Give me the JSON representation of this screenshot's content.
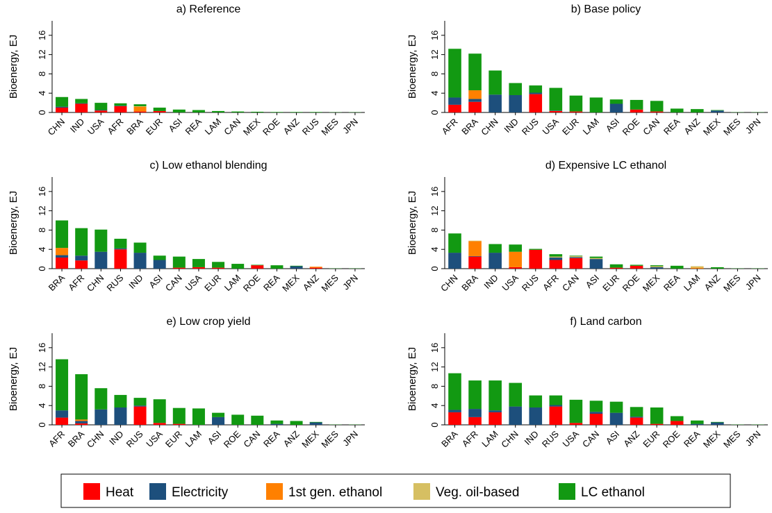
{
  "legend": [
    {
      "name": "Heat",
      "color": "#ff0000"
    },
    {
      "name": "Electricity",
      "color": "#1d4f7c"
    },
    {
      "name": "1st gen. ethanol",
      "color": "#ff8000"
    },
    {
      "name": "Veg. oil-based",
      "color": "#d6bf62"
    },
    {
      "name": "LC ethanol",
      "color": "#129912"
    }
  ],
  "chart_data": [
    {
      "type": "bar",
      "stacked": true,
      "title": "a) Reference",
      "y_label": "Bioenergy, EJ",
      "categories": [
        "CHN",
        "IND",
        "USA",
        "AFR",
        "BRA",
        "EUR",
        "ASI",
        "REA",
        "LAM",
        "CAN",
        "MEX",
        "ROE",
        "ANZ",
        "RUS",
        "MES",
        "JPN"
      ],
      "series": [
        {
          "values": [
            1.0,
            1.8,
            0.4,
            1.3,
            0.2,
            0.3,
            0,
            0,
            0,
            0,
            0,
            0,
            0,
            0,
            0,
            0
          ]
        },
        {
          "values": [
            0.2,
            0.1,
            0.1,
            0.1,
            0,
            0,
            0,
            0,
            0,
            0,
            0,
            0,
            0,
            0,
            0,
            0
          ]
        },
        {
          "values": [
            0,
            0,
            0,
            0,
            1.0,
            0,
            0,
            0,
            0,
            0,
            0,
            0,
            0,
            0,
            0,
            0
          ]
        },
        {
          "values": [
            0,
            0,
            0,
            0,
            0.1,
            0,
            0,
            0,
            0,
            0,
            0,
            0,
            0,
            0,
            0,
            0
          ]
        },
        {
          "values": [
            2.0,
            0.9,
            1.5,
            0.5,
            0.4,
            0.7,
            0.6,
            0.5,
            0.3,
            0.2,
            0.15,
            0.1,
            0.1,
            0.1,
            0.05,
            0.05
          ]
        }
      ],
      "ylim": [
        0,
        19
      ],
      "yticks": [
        0,
        4,
        8,
        12,
        16
      ]
    },
    {
      "type": "bar",
      "stacked": true,
      "title": "b) Base policy",
      "y_label": "Bioenergy, EJ",
      "categories": [
        "AFR",
        "BRA",
        "CHN",
        "IND",
        "RUS",
        "USA",
        "EUR",
        "LAM",
        "ASI",
        "ROE",
        "CAN",
        "REA",
        "ANZ",
        "MEX",
        "MES",
        "JPN"
      ],
      "series": [
        {
          "values": [
            1.6,
            2.2,
            0,
            0,
            3.8,
            0.3,
            0.2,
            0,
            0,
            0.6,
            0.2,
            0,
            0,
            0,
            0,
            0
          ]
        },
        {
          "values": [
            1.5,
            0.6,
            3.7,
            3.6,
            0.3,
            0.1,
            0,
            0,
            1.8,
            0,
            0,
            0,
            0,
            0.4,
            0,
            0
          ]
        },
        {
          "values": [
            0,
            1.8,
            0,
            0,
            0,
            0,
            0,
            0,
            0,
            0,
            0,
            0,
            0,
            0,
            0,
            0
          ]
        },
        {
          "values": [
            0,
            0,
            0,
            0,
            0,
            0,
            0,
            0,
            0,
            0,
            0,
            0,
            0,
            0,
            0,
            0
          ]
        },
        {
          "values": [
            10.1,
            7.6,
            5.0,
            2.5,
            1.5,
            4.7,
            3.3,
            3.1,
            0.9,
            2.0,
            2.2,
            0.8,
            0.7,
            0.1,
            0.05,
            0.05
          ]
        }
      ],
      "ylim": [
        0,
        19
      ],
      "yticks": [
        0,
        4,
        8,
        12,
        16
      ]
    },
    {
      "type": "bar",
      "stacked": true,
      "title": "c) Low ethanol blending",
      "y_label": "Bioenergy, EJ",
      "categories": [
        "BRA",
        "AFR",
        "CHN",
        "RUS",
        "IND",
        "ASI",
        "CAN",
        "USA",
        "EUR",
        "LAM",
        "ROE",
        "REA",
        "MEX",
        "ANZ",
        "MES",
        "JPN"
      ],
      "series": [
        {
          "values": [
            2.3,
            1.7,
            0,
            4.0,
            0,
            0,
            0.2,
            0.3,
            0.2,
            0,
            0.7,
            0,
            0,
            0.2,
            0,
            0
          ]
        },
        {
          "values": [
            0.5,
            1.0,
            3.5,
            0.2,
            3.3,
            1.8,
            0,
            0,
            0,
            0,
            0,
            0,
            0.5,
            0,
            0,
            0
          ]
        },
        {
          "values": [
            1.5,
            0,
            0,
            0,
            0,
            0,
            0,
            0,
            0,
            0,
            0,
            0,
            0,
            0.2,
            0,
            0
          ]
        },
        {
          "values": [
            0,
            0,
            0,
            0,
            0,
            0,
            0,
            0,
            0,
            0,
            0,
            0,
            0,
            0,
            0,
            0
          ]
        },
        {
          "values": [
            5.7,
            5.7,
            4.6,
            2.0,
            2.1,
            0.9,
            2.3,
            1.7,
            1.2,
            1.0,
            0.1,
            0.7,
            0.1,
            0,
            0.05,
            0.05
          ]
        }
      ],
      "ylim": [
        0,
        19
      ],
      "yticks": [
        0,
        4,
        8,
        12,
        16
      ]
    },
    {
      "type": "bar",
      "stacked": true,
      "title": "d) Expensive LC ethanol",
      "y_label": "Bioenergy, EJ",
      "categories": [
        "CHN",
        "BRA",
        "IND",
        "USA",
        "RUS",
        "AFR",
        "CAN",
        "ASI",
        "EUR",
        "ROE",
        "MEX",
        "REA",
        "LAM",
        "ANZ",
        "MES",
        "JPN"
      ],
      "series": [
        {
          "values": [
            0,
            2.5,
            0,
            0.3,
            3.9,
            1.8,
            2.2,
            0,
            0.2,
            0.6,
            0,
            0,
            0,
            0,
            0,
            0
          ]
        },
        {
          "values": [
            3.3,
            0.1,
            3.3,
            0,
            0,
            0.5,
            0.2,
            2.0,
            0,
            0,
            0.3,
            0,
            0,
            0,
            0,
            0
          ]
        },
        {
          "values": [
            0,
            3.1,
            0,
            3.2,
            0,
            0,
            0,
            0,
            0,
            0,
            0,
            0,
            0.2,
            0,
            0,
            0
          ]
        },
        {
          "values": [
            0,
            0.1,
            0,
            0,
            0,
            0.2,
            0.2,
            0.2,
            0,
            0,
            0.2,
            0,
            0.3,
            0,
            0,
            0
          ]
        },
        {
          "values": [
            4.0,
            0,
            1.8,
            1.5,
            0.2,
            0.5,
            0.1,
            0.3,
            0.7,
            0.2,
            0.2,
            0.6,
            0,
            0.3,
            0.05,
            0.05
          ]
        }
      ],
      "ylim": [
        0,
        19
      ],
      "yticks": [
        0,
        4,
        8,
        12,
        16
      ]
    },
    {
      "type": "bar",
      "stacked": true,
      "title": "e) Low crop yield",
      "y_label": "Bioenergy, EJ",
      "categories": [
        "AFR",
        "BRA",
        "CHN",
        "IND",
        "RUS",
        "USA",
        "EUR",
        "LAM",
        "ASI",
        "ROE",
        "CAN",
        "REA",
        "ANZ",
        "MEX",
        "MES",
        "JPN"
      ],
      "series": [
        {
          "values": [
            1.5,
            0.3,
            0,
            0,
            3.8,
            0.4,
            0.2,
            0,
            0,
            0,
            0,
            0,
            0,
            0,
            0,
            0
          ]
        },
        {
          "values": [
            1.5,
            0.5,
            3.2,
            3.6,
            0.2,
            0,
            0,
            0,
            1.6,
            0,
            0,
            0.2,
            0,
            0.5,
            0,
            0
          ]
        },
        {
          "values": [
            0,
            0.3,
            0,
            0,
            0,
            0,
            0,
            0,
            0,
            0,
            0,
            0,
            0,
            0,
            0,
            0
          ]
        },
        {
          "values": [
            0,
            0,
            0,
            0,
            0,
            0,
            0,
            0,
            0,
            0,
            0,
            0,
            0,
            0,
            0,
            0
          ]
        },
        {
          "values": [
            10.6,
            9.4,
            4.4,
            2.6,
            1.6,
            4.9,
            3.3,
            3.4,
            0.9,
            2.1,
            1.9,
            0.7,
            0.8,
            0.1,
            0.05,
            0.05
          ]
        }
      ],
      "ylim": [
        0,
        19
      ],
      "yticks": [
        0,
        4,
        8,
        12,
        16
      ]
    },
    {
      "type": "bar",
      "stacked": true,
      "title": "f) Land carbon",
      "y_label": "Bioenergy, EJ",
      "categories": [
        "BRA",
        "AFR",
        "LAM",
        "CHN",
        "IND",
        "RUS",
        "USA",
        "CAN",
        "ASI",
        "ANZ",
        "EUR",
        "ROE",
        "REA",
        "MEX",
        "MES",
        "JPN"
      ],
      "series": [
        {
          "values": [
            2.6,
            1.6,
            2.6,
            0,
            0,
            3.8,
            0.4,
            2.3,
            0,
            1.5,
            0.2,
            0.8,
            0,
            0,
            0,
            0
          ]
        },
        {
          "values": [
            0.5,
            1.7,
            0.4,
            3.8,
            3.6,
            0.3,
            0,
            0.4,
            2.5,
            0.2,
            0,
            0,
            0.2,
            0.5,
            0,
            0
          ]
        },
        {
          "values": [
            0,
            0,
            0,
            0,
            0,
            0,
            0,
            0,
            0,
            0,
            0,
            0,
            0,
            0,
            0,
            0
          ]
        },
        {
          "values": [
            0,
            0,
            0,
            0,
            0,
            0,
            0,
            0,
            0,
            0,
            0,
            0,
            0,
            0,
            0,
            0
          ]
        },
        {
          "values": [
            7.6,
            5.9,
            6.2,
            4.9,
            2.5,
            2.0,
            4.8,
            2.3,
            2.3,
            2.0,
            3.4,
            1.0,
            0.7,
            0.1,
            0.05,
            0.05
          ]
        }
      ],
      "ylim": [
        0,
        19
      ],
      "yticks": [
        0,
        4,
        8,
        12,
        16
      ]
    }
  ]
}
